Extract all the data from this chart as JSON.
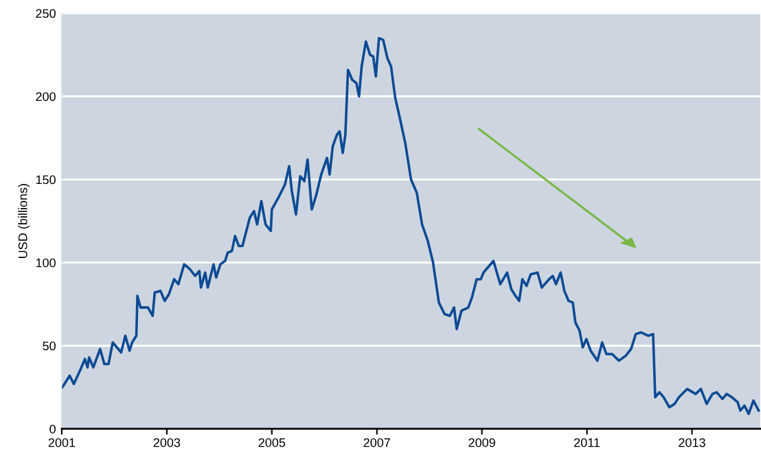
{
  "chart_data": {
    "type": "line",
    "ylabel": "USD (billions)",
    "xlim": [
      2001,
      2014.3
    ],
    "xticks": [
      2001,
      2003,
      2005,
      2007,
      2009,
      2011,
      2013
    ],
    "ylim": [
      0,
      250
    ],
    "yticks": [
      0,
      50,
      100,
      150,
      200,
      250
    ],
    "grid": "y",
    "series": [
      {
        "color": "#0d4a94",
        "x": [
          2001.01,
          2001.15,
          2001.23,
          2001.36,
          2001.44,
          2001.49,
          2001.52,
          2001.6,
          2001.73,
          2001.81,
          2001.89,
          2001.97,
          2002.13,
          2002.21,
          2002.29,
          2002.34,
          2002.42,
          2002.44,
          2002.5,
          2002.58,
          2002.64,
          2002.73,
          2002.77,
          2002.88,
          2002.96,
          2003.04,
          2003.14,
          2003.22,
          2003.33,
          2003.44,
          2003.54,
          2003.62,
          2003.65,
          2003.73,
          2003.78,
          2003.89,
          2003.94,
          2004.02,
          2004.11,
          2004.16,
          2004.24,
          2004.3,
          2004.37,
          2004.44,
          2004.58,
          2004.66,
          2004.72,
          2004.8,
          2004.88,
          2004.98,
          2005.0,
          2005.14,
          2005.25,
          2005.33,
          2005.38,
          2005.46,
          2005.54,
          2005.62,
          2005.68,
          2005.76,
          2005.84,
          2005.94,
          2006.05,
          2006.1,
          2006.16,
          2006.24,
          2006.29,
          2006.35,
          2006.4,
          2006.45,
          2006.53,
          2006.61,
          2006.66,
          2006.71,
          2006.79,
          2006.87,
          2006.93,
          2006.98,
          2007.04,
          2007.12,
          2007.2,
          2007.27,
          2007.35,
          2007.43,
          2007.54,
          2007.65,
          2007.76,
          2007.86,
          2007.97,
          2008.07,
          2008.18,
          2008.29,
          2008.39,
          2008.47,
          2008.52,
          2008.61,
          2008.74,
          2008.81,
          2008.9,
          2008.98,
          2009.03,
          2009.22,
          2009.35,
          2009.48,
          2009.56,
          2009.64,
          2009.71,
          2009.77,
          2009.85,
          2009.93,
          2010.06,
          2010.14,
          2010.28,
          2010.35,
          2010.41,
          2010.5,
          2010.57,
          2010.65,
          2010.73,
          2010.78,
          2010.86,
          2010.92,
          2010.99,
          2011.07,
          2011.2,
          2011.29,
          2011.37,
          2011.48,
          2011.61,
          2011.74,
          2011.84,
          2011.93,
          2012.03,
          2012.17,
          2012.26,
          2012.3,
          2012.38,
          2012.46,
          2012.57,
          2012.67,
          2012.75,
          2012.91,
          2013.07,
          2013.17,
          2013.28,
          2013.39,
          2013.47,
          2013.58,
          2013.66,
          2013.76,
          2013.87,
          2013.92,
          2014.0,
          2014.08,
          2014.17,
          2014.27
        ],
        "values": [
          25,
          32,
          27,
          36,
          42,
          37,
          43,
          37,
          48,
          39,
          39,
          52,
          46,
          56,
          47,
          52,
          56,
          80,
          73,
          73,
          73,
          68,
          82,
          83,
          77,
          81,
          90,
          87,
          99,
          96,
          92,
          95,
          85,
          94,
          85,
          99,
          91,
          99,
          101,
          106,
          107,
          116,
          110,
          110,
          127,
          131,
          123,
          137,
          123,
          119,
          132,
          140,
          147,
          158,
          143,
          129,
          152,
          149,
          162,
          132,
          140,
          153,
          163,
          153,
          170,
          177,
          179,
          166,
          177,
          216,
          210,
          208,
          200,
          218,
          233,
          225,
          224,
          212,
          235,
          234,
          223,
          218,
          199,
          188,
          172,
          150,
          142,
          123,
          113,
          100,
          76,
          69,
          68,
          73,
          60,
          71,
          73,
          79,
          90,
          90,
          94,
          101,
          87,
          94,
          84,
          80,
          77,
          90,
          86,
          93,
          94,
          85,
          90,
          92,
          87,
          94,
          83,
          77,
          76,
          64,
          59,
          49,
          54,
          47,
          41,
          52,
          45,
          45,
          41,
          44,
          48,
          57,
          58,
          56,
          57,
          19,
          22,
          19,
          13,
          15,
          19,
          24,
          21,
          24,
          15,
          21,
          22,
          18,
          21,
          19,
          16,
          11,
          14,
          9,
          17,
          11
        ]
      }
    ]
  }
}
